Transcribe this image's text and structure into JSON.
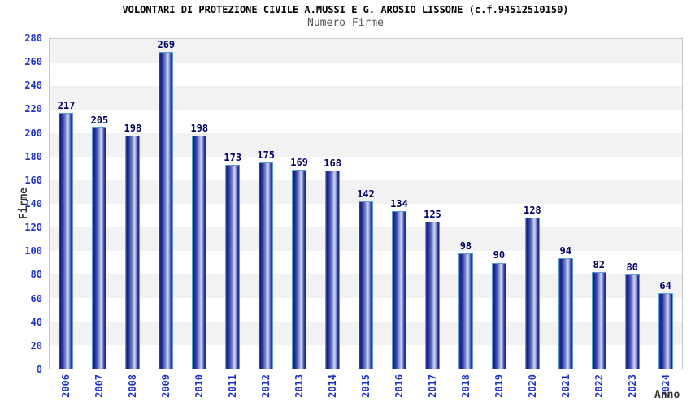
{
  "chart_data": {
    "type": "bar",
    "title": "VOLONTARI DI PROTEZIONE CIVILE A.MUSSI E G. AROSIO LISSONE (c.f.94512510150)",
    "subtitle": "Numero Firme",
    "xlabel": "Anno",
    "ylabel": "Firme",
    "categories": [
      "2006",
      "2007",
      "2008",
      "2009",
      "2010",
      "2011",
      "2012",
      "2013",
      "2014",
      "2015",
      "2016",
      "2017",
      "2018",
      "2019",
      "2020",
      "2021",
      "2022",
      "2023",
      "2024"
    ],
    "values": [
      217,
      205,
      198,
      269,
      198,
      173,
      175,
      169,
      168,
      142,
      134,
      125,
      98,
      90,
      128,
      94,
      82,
      80,
      64
    ],
    "ylim": [
      0,
      280
    ],
    "ytick_step": 20,
    "legend": null,
    "grid": "horizontal-bands",
    "colors": {
      "tick_label": "#2233cc",
      "value_label": "#000066",
      "axis_title": "#333333",
      "title": "#000000",
      "subtitle": "#555555",
      "band_alt": "#f2f2f2",
      "band_main": "#ffffff",
      "gridline": "#dcdcdc",
      "plot_border": "#c8c8c8",
      "bar_border": "#5f9ad3",
      "bar_dark": "#161f80",
      "bar_light": "#cdd4f2"
    }
  }
}
